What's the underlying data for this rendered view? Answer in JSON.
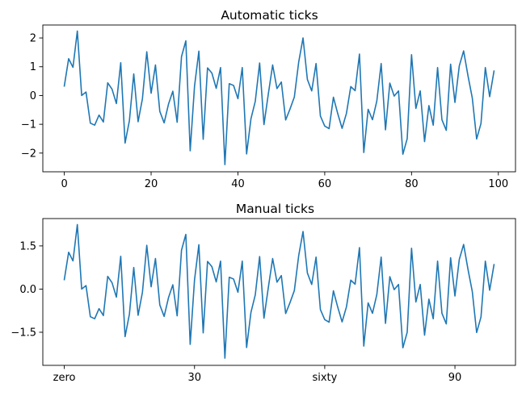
{
  "chart_data": [
    {
      "type": "line",
      "title": "Automatic ticks",
      "xlabel": "",
      "ylabel": "",
      "xlim": [
        -4.95,
        103.95
      ],
      "ylim": [
        -2.65,
        2.45
      ],
      "xticks": [
        0,
        20,
        40,
        60,
        80,
        100
      ],
      "xtick_labels": [
        "0",
        "20",
        "40",
        "60",
        "80",
        "100"
      ],
      "yticks": [
        -2,
        -1,
        0,
        1,
        2
      ],
      "ytick_labels": [
        "−2",
        "−1",
        "0",
        "1",
        "2"
      ],
      "grid": false,
      "series": [
        {
          "color": "#1f77b4",
          "x": [
            0,
            1,
            2,
            3,
            4,
            5,
            6,
            7,
            8,
            9,
            10,
            11,
            12,
            13,
            14,
            15,
            16,
            17,
            18,
            19,
            20,
            21,
            22,
            23,
            24,
            25,
            26,
            27,
            28,
            29,
            30,
            31,
            32,
            33,
            34,
            35,
            36,
            37,
            38,
            39,
            40,
            41,
            42,
            43,
            44,
            45,
            46,
            47,
            48,
            49,
            50,
            51,
            52,
            53,
            54,
            55,
            56,
            57,
            58,
            59,
            60,
            61,
            62,
            63,
            64,
            65,
            66,
            67,
            68,
            69,
            70,
            71,
            72,
            73,
            74,
            75,
            76,
            77,
            78,
            79,
            80,
            81,
            82,
            83,
            84,
            85,
            86,
            87,
            88,
            89,
            90,
            91,
            92,
            93,
            94,
            95,
            96,
            97,
            98,
            99
          ],
          "values": [
            0.33,
            1.28,
            0.98,
            2.24,
            0.0,
            0.12,
            -0.96,
            -1.03,
            -0.68,
            -0.92,
            0.44,
            0.22,
            -0.28,
            1.14,
            -1.65,
            -0.87,
            0.75,
            -0.91,
            -0.11,
            1.52,
            0.08,
            1.06,
            -0.55,
            -0.95,
            -0.3,
            0.15,
            -0.93,
            1.35,
            1.9,
            -1.92,
            0.32,
            1.54,
            -1.52,
            0.96,
            0.78,
            0.25,
            0.97,
            -2.4,
            0.41,
            0.35,
            -0.11,
            0.97,
            -2.03,
            -0.81,
            -0.2,
            1.13,
            -1.01,
            0.05,
            1.06,
            0.24,
            0.47,
            -0.85,
            -0.47,
            -0.05,
            1.16,
            2.0,
            0.56,
            0.16,
            1.11,
            -0.71,
            -1.06,
            -1.15,
            -0.06,
            -0.63,
            -1.14,
            -0.62,
            0.31,
            0.17,
            1.44,
            -1.98,
            -0.48,
            -0.84,
            -0.19,
            1.11,
            -1.19,
            0.43,
            -0.02,
            0.16,
            -2.04,
            -1.5,
            1.42,
            -0.45,
            0.16,
            -1.6,
            -0.35,
            -1.03,
            0.97,
            -0.84,
            -1.21,
            1.09,
            -0.24,
            1.03,
            1.55,
            0.69,
            -0.09,
            -1.51,
            -0.97,
            0.97,
            -0.04,
            0.85
          ]
        }
      ]
    },
    {
      "type": "line",
      "title": "Manual ticks",
      "xlabel": "",
      "ylabel": "",
      "xlim": [
        -4.95,
        103.95
      ],
      "ylim": [
        -2.65,
        2.45
      ],
      "xticks": [
        0,
        30,
        60,
        90
      ],
      "xtick_labels": [
        "zero",
        "30",
        "sixty",
        "90"
      ],
      "yticks": [
        -1.5,
        0,
        1.5
      ],
      "ytick_labels": [
        "−1.5",
        "0.0",
        "1.5"
      ],
      "grid": false,
      "series": [
        {
          "color": "#1f77b4",
          "x": [
            0,
            1,
            2,
            3,
            4,
            5,
            6,
            7,
            8,
            9,
            10,
            11,
            12,
            13,
            14,
            15,
            16,
            17,
            18,
            19,
            20,
            21,
            22,
            23,
            24,
            25,
            26,
            27,
            28,
            29,
            30,
            31,
            32,
            33,
            34,
            35,
            36,
            37,
            38,
            39,
            40,
            41,
            42,
            43,
            44,
            45,
            46,
            47,
            48,
            49,
            50,
            51,
            52,
            53,
            54,
            55,
            56,
            57,
            58,
            59,
            60,
            61,
            62,
            63,
            64,
            65,
            66,
            67,
            68,
            69,
            70,
            71,
            72,
            73,
            74,
            75,
            76,
            77,
            78,
            79,
            80,
            81,
            82,
            83,
            84,
            85,
            86,
            87,
            88,
            89,
            90,
            91,
            92,
            93,
            94,
            95,
            96,
            97,
            98,
            99
          ],
          "values": [
            0.33,
            1.28,
            0.98,
            2.24,
            0.0,
            0.12,
            -0.96,
            -1.03,
            -0.68,
            -0.92,
            0.44,
            0.22,
            -0.28,
            1.14,
            -1.65,
            -0.87,
            0.75,
            -0.91,
            -0.11,
            1.52,
            0.08,
            1.06,
            -0.55,
            -0.95,
            -0.3,
            0.15,
            -0.93,
            1.35,
            1.9,
            -1.92,
            0.32,
            1.54,
            -1.52,
            0.96,
            0.78,
            0.25,
            0.97,
            -2.4,
            0.41,
            0.35,
            -0.11,
            0.97,
            -2.03,
            -0.81,
            -0.2,
            1.13,
            -1.01,
            0.05,
            1.06,
            0.24,
            0.47,
            -0.85,
            -0.47,
            -0.05,
            1.16,
            2.0,
            0.56,
            0.16,
            1.11,
            -0.71,
            -1.06,
            -1.15,
            -0.06,
            -0.63,
            -1.14,
            -0.62,
            0.31,
            0.17,
            1.44,
            -1.98,
            -0.48,
            -0.84,
            -0.19,
            1.11,
            -1.19,
            0.43,
            -0.02,
            0.16,
            -2.04,
            -1.5,
            1.42,
            -0.45,
            0.16,
            -1.6,
            -0.35,
            -1.03,
            0.97,
            -0.84,
            -1.21,
            1.09,
            -0.24,
            1.03,
            1.55,
            0.69,
            -0.09,
            -1.51,
            -0.97,
            0.97,
            -0.04,
            0.85
          ]
        }
      ]
    }
  ]
}
